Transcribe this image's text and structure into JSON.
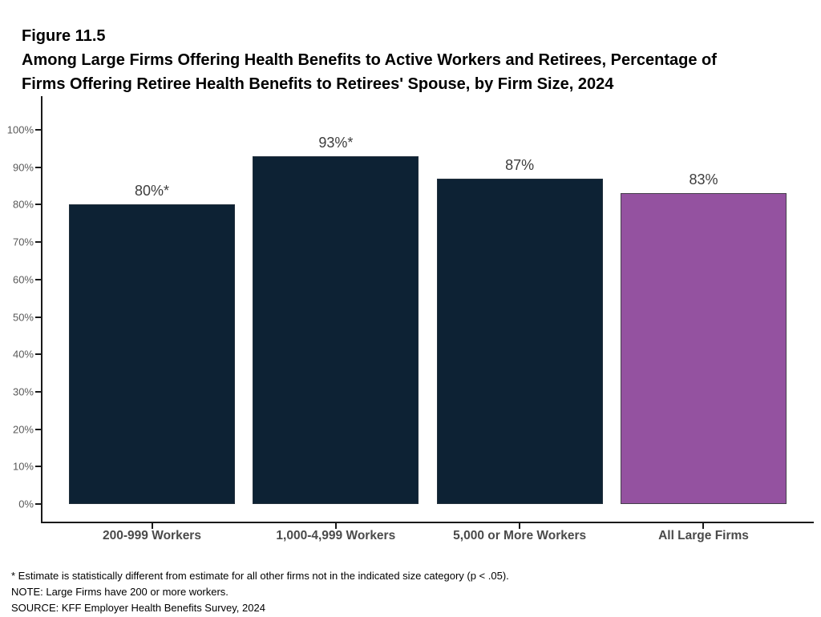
{
  "figure": {
    "label": "Figure 11.5",
    "title_line1": "Among Large Firms Offering Health Benefits to Active Workers and Retirees, Percentage of",
    "title_line2": "Firms Offering Retiree Health Benefits to Retirees' Spouse, by Firm Size, 2024"
  },
  "chart_data": {
    "type": "bar",
    "categories": [
      "200-999 Workers",
      "1,000-4,999 Workers",
      "5,000 or More Workers",
      "All Large Firms"
    ],
    "values": [
      80,
      93,
      87,
      83
    ],
    "value_labels": [
      "80%*",
      "93%*",
      "87%",
      "83%"
    ],
    "y_tick_labels": [
      "0%",
      "10%",
      "20%",
      "30%",
      "40%",
      "50%",
      "60%",
      "70%",
      "80%",
      "90%",
      "100%"
    ],
    "ylim": [
      0,
      100
    ],
    "grid": "off",
    "legend": "none",
    "bar_fill_colors": [
      "#0d2234",
      "#0d2234",
      "#0d2234",
      "#9452a0"
    ],
    "bar_border_colors": [
      "#22303c",
      "#22303c",
      "#22303c",
      "#453f4b"
    ],
    "axis_color": "#1a1a1a"
  },
  "footnotes": {
    "line1": "* Estimate is statistically different from estimate for all other firms not in the indicated size category (p < .05).",
    "line2": "NOTE: Large Firms have 200 or more workers.",
    "line3": "SOURCE: KFF Employer Health Benefits Survey, 2024"
  }
}
